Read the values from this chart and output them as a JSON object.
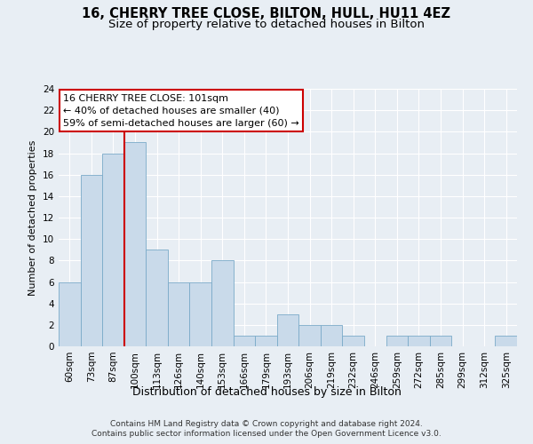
{
  "title1": "16, CHERRY TREE CLOSE, BILTON, HULL, HU11 4EZ",
  "title2": "Size of property relative to detached houses in Bilton",
  "xlabel": "Distribution of detached houses by size in Bilton",
  "ylabel": "Number of detached properties",
  "categories": [
    "60sqm",
    "73sqm",
    "87sqm",
    "100sqm",
    "113sqm",
    "126sqm",
    "140sqm",
    "153sqm",
    "166sqm",
    "179sqm",
    "193sqm",
    "206sqm",
    "219sqm",
    "232sqm",
    "246sqm",
    "259sqm",
    "272sqm",
    "285sqm",
    "299sqm",
    "312sqm",
    "325sqm"
  ],
  "values": [
    6,
    16,
    18,
    19,
    9,
    6,
    6,
    8,
    1,
    1,
    3,
    2,
    2,
    1,
    0,
    1,
    1,
    1,
    0,
    0,
    1
  ],
  "bar_color": "#c9daea",
  "bar_edge_color": "#7aaac8",
  "highlight_index": 3,
  "highlight_line_color": "#cc0000",
  "annotation_line1": "16 CHERRY TREE CLOSE: 101sqm",
  "annotation_line2": "← 40% of detached houses are smaller (40)",
  "annotation_line3": "59% of semi-detached houses are larger (60) →",
  "annotation_box_color": "#ffffff",
  "annotation_box_edge": "#cc0000",
  "ylim": [
    0,
    24
  ],
  "yticks": [
    0,
    2,
    4,
    6,
    8,
    10,
    12,
    14,
    16,
    18,
    20,
    22,
    24
  ],
  "footer_line1": "Contains HM Land Registry data © Crown copyright and database right 2024.",
  "footer_line2": "Contains public sector information licensed under the Open Government Licence v3.0.",
  "plot_bg_color": "#e8eef4",
  "fig_bg_color": "#e8eef4",
  "grid_color": "#ffffff",
  "title1_fontsize": 10.5,
  "title2_fontsize": 9.5,
  "xlabel_fontsize": 9,
  "ylabel_fontsize": 8,
  "tick_fontsize": 7.5,
  "annotation_fontsize": 8,
  "footer_fontsize": 6.5
}
